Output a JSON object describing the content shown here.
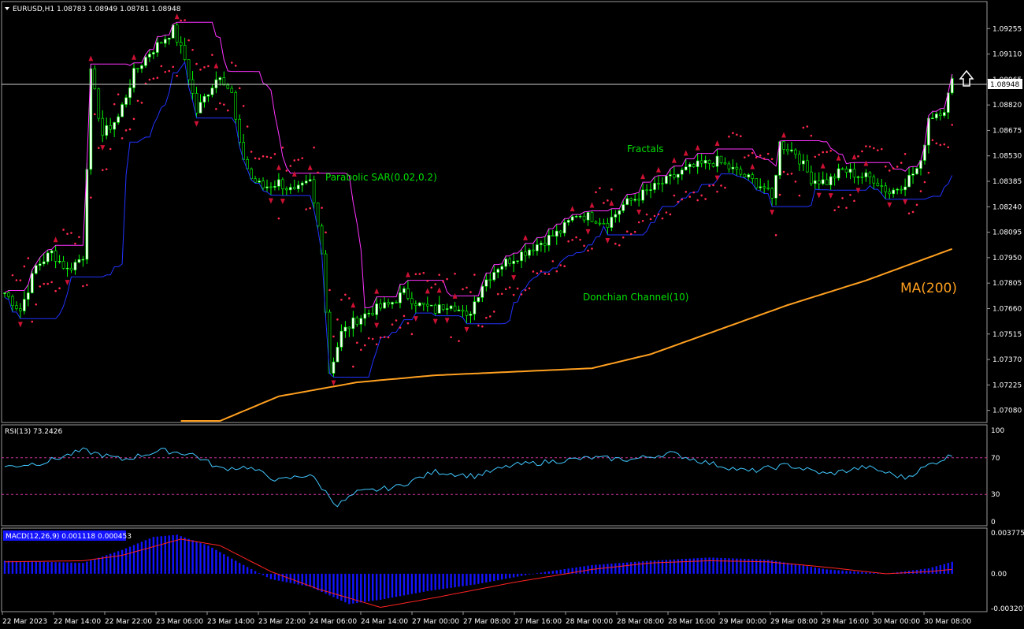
{
  "chart_data": [
    {
      "type": "candlestick",
      "title": "EURUSD,H1  1.08783 1.08949 1.08781 1.08948",
      "symbol": "EURUSD",
      "timeframe": "H1",
      "ohlc_last": {
        "open": 1.08783,
        "high": 1.08949,
        "low": 1.08781,
        "close": 1.08948
      },
      "current_price_label": "1.08948",
      "ylim": [
        1.0702,
        1.094
      ],
      "y_ticks": [
        "1.09255",
        "1.09110",
        "1.08965",
        "1.08820",
        "1.08675",
        "1.08530",
        "1.08385",
        "1.08240",
        "1.08095",
        "1.07950",
        "1.07805",
        "1.07660",
        "1.07515",
        "1.07370",
        "1.07225",
        "1.07080"
      ],
      "x_ticks": [
        "22 Mar 2023",
        "22 Mar 14:00",
        "22 Mar 22:00",
        "23 Mar 06:00",
        "23 Mar 14:00",
        "23 Mar 22:00",
        "24 Mar 06:00",
        "24 Mar 14:00",
        "27 Mar 00:00",
        "27 Mar 08:00",
        "27 Mar 16:00",
        "28 Mar 00:00",
        "28 Mar 08:00",
        "28 Mar 16:00",
        "29 Mar 00:00",
        "29 Mar 08:00",
        "29 Mar 16:00",
        "30 Mar 00:00",
        "30 Mar 08:00"
      ],
      "close_path": [
        [
          0,
          1.0775
        ],
        [
          4,
          1.0765
        ],
        [
          8,
          1.079
        ],
        [
          12,
          1.0798
        ],
        [
          16,
          1.0788
        ],
        [
          20,
          1.0796
        ],
        [
          22,
          1.09
        ],
        [
          25,
          1.0865
        ],
        [
          29,
          1.0875
        ],
        [
          33,
          1.09
        ],
        [
          37,
          1.0912
        ],
        [
          40,
          1.0918
        ],
        [
          43,
          1.0925
        ],
        [
          46,
          1.0908
        ],
        [
          49,
          1.0878
        ],
        [
          52,
          1.089
        ],
        [
          55,
          1.09
        ],
        [
          58,
          1.0888
        ],
        [
          60,
          1.0858
        ],
        [
          63,
          1.084
        ],
        [
          66,
          1.0835
        ],
        [
          70,
          1.0838
        ],
        [
          74,
          1.0832
        ],
        [
          78,
          1.0838
        ],
        [
          81,
          1.08
        ],
        [
          83,
          1.073
        ],
        [
          86,
          1.0752
        ],
        [
          90,
          1.076
        ],
        [
          94,
          1.0765
        ],
        [
          98,
          1.0768
        ],
        [
          102,
          1.0775
        ],
        [
          106,
          1.0768
        ],
        [
          110,
          1.0765
        ],
        [
          114,
          1.077
        ],
        [
          118,
          1.076
        ],
        [
          122,
          1.078
        ],
        [
          126,
          1.079
        ],
        [
          130,
          1.0795
        ],
        [
          134,
          1.08
        ],
        [
          138,
          1.0805
        ],
        [
          142,
          1.081
        ],
        [
          146,
          1.082
        ],
        [
          150,
          1.0818
        ],
        [
          154,
          1.0815
        ],
        [
          158,
          1.0825
        ],
        [
          162,
          1.083
        ],
        [
          166,
          1.0835
        ],
        [
          170,
          1.084
        ],
        [
          174,
          1.0845
        ],
        [
          178,
          1.0848
        ],
        [
          182,
          1.085
        ],
        [
          186,
          1.0845
        ],
        [
          190,
          1.084
        ],
        [
          194,
          1.0835
        ],
        [
          196,
          1.0828
        ],
        [
          198,
          1.086
        ],
        [
          202,
          1.0855
        ],
        [
          206,
          1.084
        ],
        [
          210,
          1.0838
        ],
        [
          214,
          1.0845
        ],
        [
          218,
          1.0842
        ],
        [
          222,
          1.084
        ],
        [
          226,
          1.0832
        ],
        [
          230,
          1.0838
        ],
        [
          234,
          1.0848
        ],
        [
          236,
          1.0875
        ],
        [
          240,
          1.088
        ],
        [
          242,
          1.0895
        ]
      ],
      "annotations": [
        {
          "text": "Parabolic SAR(0.02,0.2)",
          "color": "#00e000"
        },
        {
          "text": "Fractals",
          "color": "#00e000"
        },
        {
          "text": "Donchian Channel(10)",
          "color": "#00e000"
        },
        {
          "text": "MA(200)",
          "color": "#ff9900"
        }
      ],
      "colors": {
        "bull_candle": "#ffffff",
        "bear_candle": "#00ff00",
        "sar": "#ff2a4d",
        "donchian_upper": "#ff33ff",
        "donchian_lower": "#2233ff",
        "ma": "#ffa020",
        "fractal": "#cc1133"
      },
      "ma_path": [
        [
          55,
          1.0702
        ],
        [
          70,
          1.0716
        ],
        [
          90,
          1.0724
        ],
        [
          110,
          1.0728
        ],
        [
          130,
          1.073
        ],
        [
          150,
          1.0732
        ],
        [
          165,
          1.074
        ],
        [
          180,
          1.0752
        ],
        [
          200,
          1.0768
        ],
        [
          220,
          1.0782
        ],
        [
          242,
          1.08
        ]
      ]
    },
    {
      "type": "line",
      "title": "RSI(13) 73.2426",
      "ylim": [
        0,
        100
      ],
      "y_ticks": [
        "100",
        "70",
        "30",
        "0"
      ],
      "levels": [
        70,
        30
      ],
      "color": "#40c8ff",
      "values_path": [
        [
          0,
          60
        ],
        [
          10,
          65
        ],
        [
          20,
          78
        ],
        [
          30,
          68
        ],
        [
          40,
          78
        ],
        [
          48,
          74
        ],
        [
          55,
          58
        ],
        [
          62,
          60
        ],
        [
          70,
          45
        ],
        [
          78,
          52
        ],
        [
          85,
          18
        ],
        [
          90,
          32
        ],
        [
          100,
          38
        ],
        [
          110,
          55
        ],
        [
          120,
          50
        ],
        [
          130,
          62
        ],
        [
          140,
          66
        ],
        [
          150,
          70
        ],
        [
          160,
          68
        ],
        [
          170,
          75
        ],
        [
          180,
          64
        ],
        [
          190,
          55
        ],
        [
          200,
          62
        ],
        [
          210,
          52
        ],
        [
          220,
          60
        ],
        [
          230,
          48
        ],
        [
          236,
          62
        ],
        [
          242,
          73
        ]
      ]
    },
    {
      "type": "bar",
      "title": "MACD(12,26,9) 0.001118 0.000453",
      "ylim": [
        -0.003207,
        0.003775
      ],
      "y_ticks": [
        "0.003775",
        "0.00",
        "-0.003207"
      ],
      "histogram_color": "#1414ff",
      "signal_color": "#ff2222",
      "histogram_path": [
        [
          0,
          0.0012
        ],
        [
          20,
          0.001
        ],
        [
          30,
          0.0022
        ],
        [
          38,
          0.0034
        ],
        [
          44,
          0.0036
        ],
        [
          52,
          0.0026
        ],
        [
          60,
          0.001
        ],
        [
          68,
          -0.0005
        ],
        [
          78,
          -0.0012
        ],
        [
          88,
          -0.0028
        ],
        [
          96,
          -0.0024
        ],
        [
          108,
          -0.0016
        ],
        [
          120,
          -0.001
        ],
        [
          135,
          0.0
        ],
        [
          150,
          0.0008
        ],
        [
          165,
          0.0012
        ],
        [
          180,
          0.0015
        ],
        [
          195,
          0.0013
        ],
        [
          210,
          0.0004
        ],
        [
          225,
          0.0
        ],
        [
          236,
          0.0005
        ],
        [
          242,
          0.0011
        ]
      ],
      "signal_path": [
        [
          0,
          0.0011
        ],
        [
          20,
          0.0012
        ],
        [
          30,
          0.0017
        ],
        [
          45,
          0.0032
        ],
        [
          55,
          0.0026
        ],
        [
          68,
          0.0002
        ],
        [
          80,
          -0.0014
        ],
        [
          96,
          -0.0031
        ],
        [
          110,
          -0.0022
        ],
        [
          130,
          -0.0008
        ],
        [
          150,
          0.0004
        ],
        [
          165,
          0.001
        ],
        [
          180,
          0.0012
        ],
        [
          195,
          0.0011
        ],
        [
          210,
          0.0006
        ],
        [
          225,
          0.0
        ],
        [
          236,
          0.0002
        ],
        [
          242,
          0.0004
        ]
      ]
    }
  ]
}
